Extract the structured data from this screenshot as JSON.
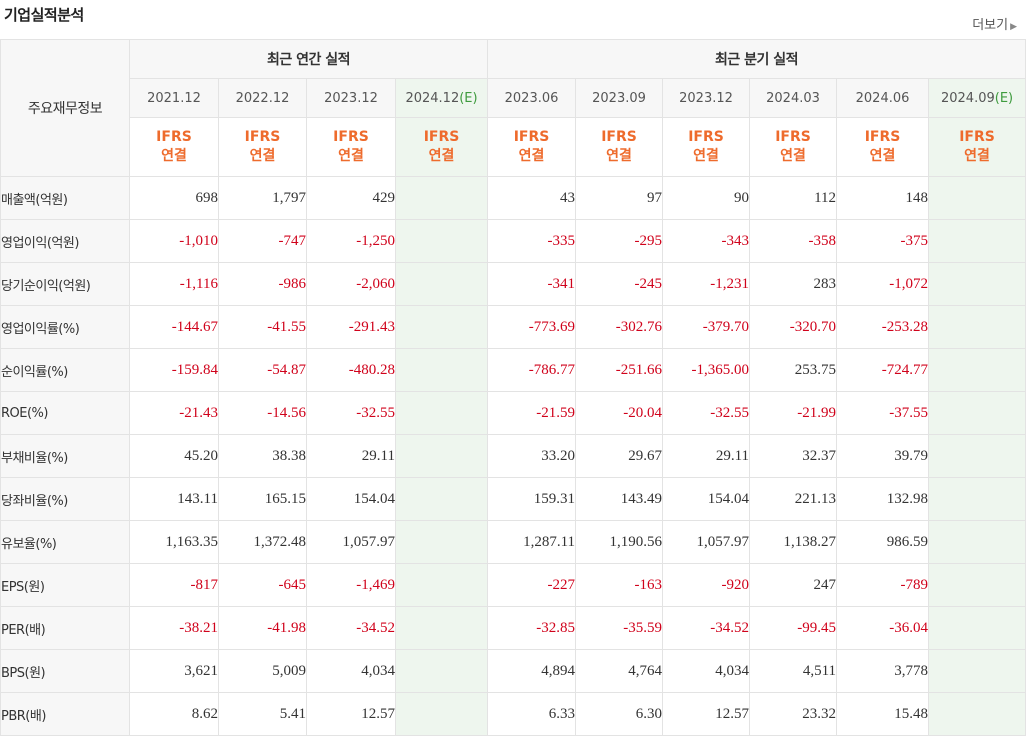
{
  "header": {
    "title": "기업실적분석",
    "more_label": "더보기"
  },
  "table": {
    "corner_label": "주요재무정보",
    "group_annual": "최근 연간 실적",
    "group_quarter": "최근 분기 실적",
    "periods": [
      {
        "label": "2021.12"
      },
      {
        "label": "2022.12"
      },
      {
        "label": "2023.12"
      },
      {
        "label": "2024.12",
        "est_mark": "(E)"
      },
      {
        "label": "2023.06"
      },
      {
        "label": "2023.09"
      },
      {
        "label": "2023.12"
      },
      {
        "label": "2024.03"
      },
      {
        "label": "2024.06"
      },
      {
        "label": "2024.09",
        "est_mark": "(E)"
      }
    ],
    "ifrs_line1": "IFRS",
    "ifrs_line2": "연결",
    "rows": [
      {
        "label": "매출액(억원)",
        "values": [
          "698",
          "1,797",
          "429",
          "",
          "43",
          "97",
          "90",
          "112",
          "148",
          ""
        ]
      },
      {
        "label": "영업이익(억원)",
        "values": [
          "-1,010",
          "-747",
          "-1,250",
          "",
          "-335",
          "-295",
          "-343",
          "-358",
          "-375",
          ""
        ]
      },
      {
        "label": "당기순이익(억원)",
        "values": [
          "-1,116",
          "-986",
          "-2,060",
          "",
          "-341",
          "-245",
          "-1,231",
          "283",
          "-1,072",
          ""
        ]
      },
      {
        "label": "영업이익률(%)",
        "values": [
          "-144.67",
          "-41.55",
          "-291.43",
          "",
          "-773.69",
          "-302.76",
          "-379.70",
          "-320.70",
          "-253.28",
          ""
        ]
      },
      {
        "label": "순이익률(%)",
        "values": [
          "-159.84",
          "-54.87",
          "-480.28",
          "",
          "-786.77",
          "-251.66",
          "-1,365.00",
          "253.75",
          "-724.77",
          ""
        ]
      },
      {
        "label": "ROE(%)",
        "values": [
          "-21.43",
          "-14.56",
          "-32.55",
          "",
          "-21.59",
          "-20.04",
          "-32.55",
          "-21.99",
          "-37.55",
          ""
        ]
      },
      {
        "label": "부채비율(%)",
        "values": [
          "45.20",
          "38.38",
          "29.11",
          "",
          "33.20",
          "29.67",
          "29.11",
          "32.37",
          "39.79",
          ""
        ]
      },
      {
        "label": "당좌비율(%)",
        "values": [
          "143.11",
          "165.15",
          "154.04",
          "",
          "159.31",
          "143.49",
          "154.04",
          "221.13",
          "132.98",
          ""
        ]
      },
      {
        "label": "유보율(%)",
        "values": [
          "1,163.35",
          "1,372.48",
          "1,057.97",
          "",
          "1,287.11",
          "1,190.56",
          "1,057.97",
          "1,138.27",
          "986.59",
          ""
        ]
      },
      {
        "label": "EPS(원)",
        "values": [
          "-817",
          "-645",
          "-1,469",
          "",
          "-227",
          "-163",
          "-920",
          "247",
          "-789",
          ""
        ]
      },
      {
        "label": "PER(배)",
        "values": [
          "-38.21",
          "-41.98",
          "-34.52",
          "",
          "-32.85",
          "-35.59",
          "-34.52",
          "-99.45",
          "-36.04",
          ""
        ]
      },
      {
        "label": "BPS(원)",
        "values": [
          "3,621",
          "5,009",
          "4,034",
          "",
          "4,894",
          "4,764",
          "4,034",
          "4,511",
          "3,778",
          ""
        ]
      },
      {
        "label": "PBR(배)",
        "values": [
          "8.62",
          "5.41",
          "12.57",
          "",
          "6.33",
          "6.30",
          "12.57",
          "23.32",
          "15.48",
          ""
        ]
      }
    ],
    "group_starts": [
      3,
      6,
      9
    ],
    "colors": {
      "negative": "#d0021b",
      "ifrs": "#ee6b2c",
      "estimate_bg": "#eef6ee",
      "estimate_mark": "#3e9b3e"
    }
  }
}
